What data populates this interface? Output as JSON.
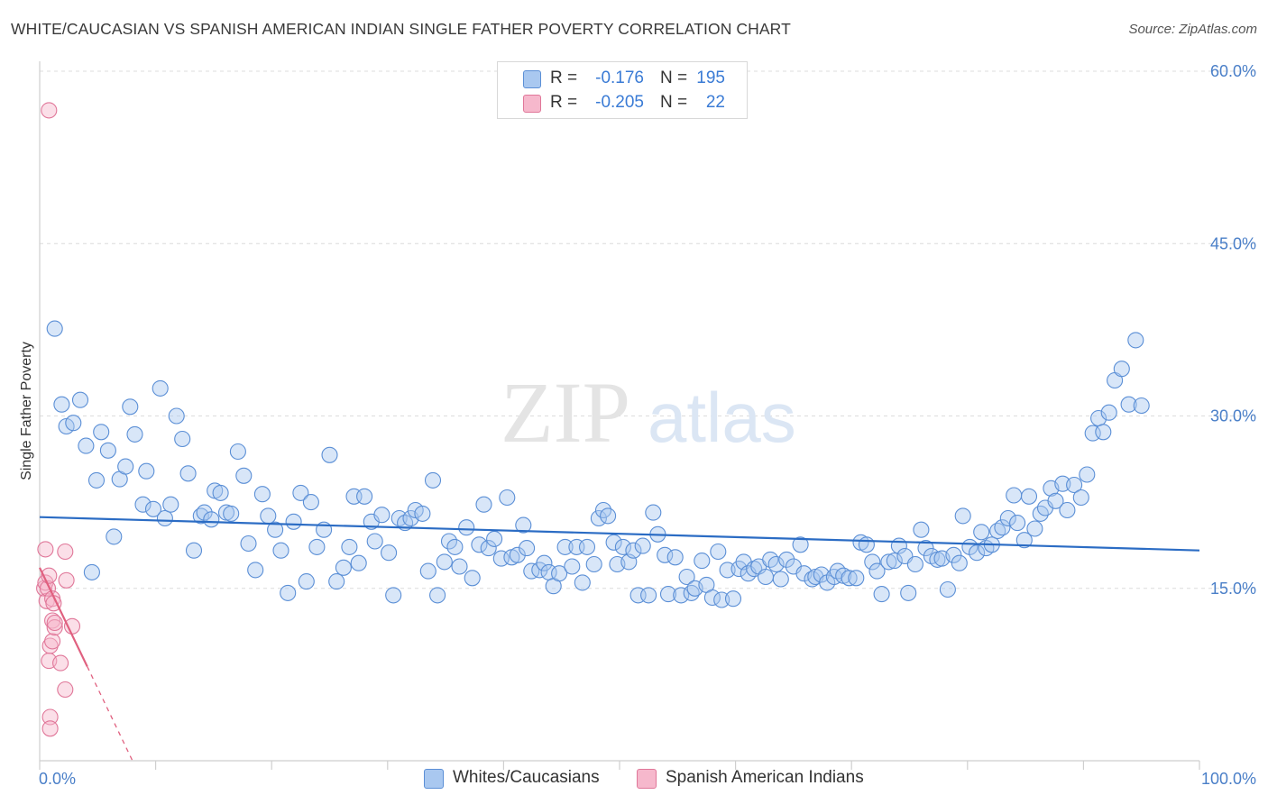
{
  "title": "WHITE/CAUCASIAN VS SPANISH AMERICAN INDIAN SINGLE FATHER POVERTY CORRELATION CHART",
  "source": "Source: ZipAtlas.com",
  "watermark": {
    "zip": "ZIP",
    "atlas": "atlas"
  },
  "legend": {
    "rows": [
      {
        "r_label": "R =",
        "r_value": "-0.176",
        "n_label": "N =",
        "n_value": "195",
        "color": "#a9c8f0",
        "border": "#5b8fd6"
      },
      {
        "r_label": "R =",
        "r_value": "-0.205",
        "n_label": "N =",
        "n_value": "22",
        "color": "#f6b8cc",
        "border": "#e07799"
      }
    ]
  },
  "bottom_legend": [
    {
      "label": "Whites/Caucasians",
      "color": "#a9c8f0",
      "border": "#5b8fd6"
    },
    {
      "label": "Spanish American Indians",
      "color": "#f6b8cc",
      "border": "#e07799"
    }
  ],
  "chart_data": {
    "type": "scatter",
    "title": "WHITE/CAUCASIAN VS SPANISH AMERICAN INDIAN SINGLE FATHER POVERTY CORRELATION CHART",
    "xlabel": "",
    "ylabel": "Single Father Poverty",
    "xlim": [
      0,
      100
    ],
    "ylim": [
      0,
      60
    ],
    "x_tick_labels": {
      "min": "0.0%",
      "max": "100.0%"
    },
    "y_ticks": [
      15,
      30,
      45,
      60
    ],
    "y_tick_labels": [
      "15.0%",
      "30.0%",
      "45.0%",
      "60.0%"
    ],
    "grid": true,
    "series": [
      {
        "name": "Whites/Caucasians",
        "color": "#5b8fd6",
        "fill": "rgba(169,200,240,0.45)",
        "trend": {
          "x": [
            0,
            100
          ],
          "y": [
            21.2,
            18.3
          ],
          "color": "#2b6cc4"
        },
        "points": [
          [
            1.3,
            37.6
          ],
          [
            1.9,
            31.0
          ],
          [
            2.3,
            29.1
          ],
          [
            2.9,
            29.4
          ],
          [
            3.5,
            31.4
          ],
          [
            4.0,
            27.4
          ],
          [
            4.5,
            16.4
          ],
          [
            4.9,
            24.4
          ],
          [
            5.3,
            28.6
          ],
          [
            5.9,
            27.0
          ],
          [
            6.4,
            19.5
          ],
          [
            6.9,
            24.5
          ],
          [
            7.4,
            25.6
          ],
          [
            7.8,
            30.8
          ],
          [
            8.2,
            28.4
          ],
          [
            8.9,
            22.3
          ],
          [
            9.2,
            25.2
          ],
          [
            9.8,
            21.9
          ],
          [
            10.4,
            32.4
          ],
          [
            10.8,
            21.1
          ],
          [
            11.3,
            22.3
          ],
          [
            11.8,
            30.0
          ],
          [
            12.3,
            28.0
          ],
          [
            12.8,
            25.0
          ],
          [
            13.3,
            18.3
          ],
          [
            13.9,
            21.3
          ],
          [
            14.2,
            21.6
          ],
          [
            14.8,
            21.0
          ],
          [
            15.1,
            23.5
          ],
          [
            15.6,
            23.3
          ],
          [
            16.1,
            21.6
          ],
          [
            16.5,
            21.5
          ],
          [
            17.1,
            26.9
          ],
          [
            17.6,
            24.8
          ],
          [
            18.0,
            18.9
          ],
          [
            18.6,
            16.6
          ],
          [
            19.2,
            23.2
          ],
          [
            19.7,
            21.3
          ],
          [
            20.3,
            20.1
          ],
          [
            20.8,
            18.3
          ],
          [
            21.4,
            14.6
          ],
          [
            21.9,
            20.8
          ],
          [
            22.5,
            23.3
          ],
          [
            23.0,
            15.6
          ],
          [
            23.4,
            22.5
          ],
          [
            23.9,
            18.6
          ],
          [
            24.5,
            20.1
          ],
          [
            25.0,
            26.6
          ],
          [
            25.6,
            15.6
          ],
          [
            26.2,
            16.8
          ],
          [
            26.7,
            18.6
          ],
          [
            27.1,
            23.0
          ],
          [
            27.5,
            17.2
          ],
          [
            28.0,
            23.0
          ],
          [
            28.6,
            20.8
          ],
          [
            28.9,
            19.1
          ],
          [
            29.5,
            21.4
          ],
          [
            30.1,
            18.1
          ],
          [
            30.5,
            14.4
          ],
          [
            31.0,
            21.1
          ],
          [
            31.5,
            20.7
          ],
          [
            32.0,
            21.1
          ],
          [
            32.4,
            21.8
          ],
          [
            33.0,
            21.5
          ],
          [
            33.5,
            16.5
          ],
          [
            33.9,
            24.4
          ],
          [
            34.3,
            14.4
          ],
          [
            34.9,
            17.3
          ],
          [
            35.3,
            19.1
          ],
          [
            35.8,
            18.6
          ],
          [
            36.2,
            16.9
          ],
          [
            36.8,
            20.3
          ],
          [
            37.3,
            15.9
          ],
          [
            37.9,
            18.8
          ],
          [
            38.3,
            22.3
          ],
          [
            38.7,
            18.5
          ],
          [
            39.2,
            19.3
          ],
          [
            39.8,
            17.6
          ],
          [
            40.3,
            22.9
          ],
          [
            40.7,
            17.7
          ],
          [
            41.2,
            17.9
          ],
          [
            41.7,
            20.5
          ],
          [
            42.0,
            18.5
          ],
          [
            42.4,
            16.5
          ],
          [
            43.1,
            16.6
          ],
          [
            43.5,
            17.2
          ],
          [
            43.9,
            16.4
          ],
          [
            44.3,
            15.2
          ],
          [
            44.8,
            16.3
          ],
          [
            45.3,
            18.6
          ],
          [
            45.9,
            16.9
          ],
          [
            46.3,
            18.6
          ],
          [
            46.8,
            15.5
          ],
          [
            47.2,
            18.6
          ],
          [
            47.8,
            17.1
          ],
          [
            48.2,
            21.1
          ],
          [
            48.6,
            21.8
          ],
          [
            49.0,
            21.3
          ],
          [
            49.5,
            19.0
          ],
          [
            49.8,
            17.1
          ],
          [
            50.3,
            18.6
          ],
          [
            50.8,
            17.3
          ],
          [
            51.2,
            18.3
          ],
          [
            51.6,
            14.4
          ],
          [
            52.0,
            18.7
          ],
          [
            52.5,
            14.4
          ],
          [
            52.9,
            21.6
          ],
          [
            53.3,
            19.7
          ],
          [
            53.9,
            17.9
          ],
          [
            54.2,
            14.5
          ],
          [
            54.8,
            17.7
          ],
          [
            55.3,
            14.4
          ],
          [
            55.8,
            16.0
          ],
          [
            56.2,
            14.6
          ],
          [
            56.5,
            15.0
          ],
          [
            57.1,
            17.4
          ],
          [
            57.5,
            15.3
          ],
          [
            58.0,
            14.2
          ],
          [
            58.5,
            18.2
          ],
          [
            58.8,
            14.0
          ],
          [
            59.3,
            16.6
          ],
          [
            59.8,
            14.1
          ],
          [
            60.3,
            16.7
          ],
          [
            60.7,
            17.3
          ],
          [
            61.1,
            16.3
          ],
          [
            61.6,
            16.7
          ],
          [
            62.0,
            16.9
          ],
          [
            62.6,
            16.0
          ],
          [
            63.0,
            17.5
          ],
          [
            63.5,
            17.1
          ],
          [
            63.9,
            15.8
          ],
          [
            64.4,
            17.5
          ],
          [
            65.0,
            16.9
          ],
          [
            65.6,
            18.8
          ],
          [
            65.9,
            16.3
          ],
          [
            66.6,
            15.8
          ],
          [
            66.9,
            16.0
          ],
          [
            67.4,
            16.2
          ],
          [
            67.9,
            15.5
          ],
          [
            68.5,
            16.0
          ],
          [
            68.8,
            16.5
          ],
          [
            69.3,
            16.1
          ],
          [
            69.8,
            15.9
          ],
          [
            70.4,
            15.9
          ],
          [
            70.8,
            19.0
          ],
          [
            71.3,
            18.8
          ],
          [
            71.8,
            17.3
          ],
          [
            72.2,
            16.5
          ],
          [
            72.6,
            14.5
          ],
          [
            73.2,
            17.3
          ],
          [
            73.7,
            17.4
          ],
          [
            74.1,
            18.7
          ],
          [
            74.6,
            17.8
          ],
          [
            74.9,
            14.6
          ],
          [
            75.5,
            17.1
          ],
          [
            76.0,
            20.1
          ],
          [
            76.4,
            18.5
          ],
          [
            76.9,
            17.8
          ],
          [
            77.4,
            17.5
          ],
          [
            77.8,
            17.6
          ],
          [
            78.3,
            14.9
          ],
          [
            78.8,
            17.9
          ],
          [
            79.3,
            17.2
          ],
          [
            79.6,
            21.3
          ],
          [
            80.2,
            18.6
          ],
          [
            80.8,
            18.1
          ],
          [
            81.2,
            19.9
          ],
          [
            81.6,
            18.5
          ],
          [
            82.1,
            18.8
          ],
          [
            82.6,
            20.0
          ],
          [
            83.0,
            20.3
          ],
          [
            83.5,
            21.1
          ],
          [
            84.0,
            23.1
          ],
          [
            84.3,
            20.7
          ],
          [
            84.9,
            19.2
          ],
          [
            85.3,
            23.0
          ],
          [
            85.8,
            20.2
          ],
          [
            86.3,
            21.5
          ],
          [
            86.7,
            22.0
          ],
          [
            87.2,
            23.7
          ],
          [
            87.6,
            22.6
          ],
          [
            88.2,
            24.1
          ],
          [
            88.6,
            21.8
          ],
          [
            89.2,
            24.0
          ],
          [
            89.8,
            22.9
          ],
          [
            90.3,
            24.9
          ],
          [
            90.8,
            28.5
          ],
          [
            91.3,
            29.8
          ],
          [
            91.7,
            28.6
          ],
          [
            92.2,
            30.3
          ],
          [
            92.7,
            33.1
          ],
          [
            93.3,
            34.1
          ],
          [
            93.9,
            31.0
          ],
          [
            94.5,
            36.6
          ],
          [
            95.0,
            30.9
          ]
        ]
      },
      {
        "name": "Spanish American Indians",
        "color": "#e07799",
        "fill": "rgba(246,184,204,0.45)",
        "trend": {
          "x": [
            0,
            4.1
          ],
          "y": [
            16.8,
            8.2
          ],
          "dash_to": [
            8.0,
            0
          ],
          "color": "#e0607f"
        },
        "points": [
          [
            0.4,
            15.0
          ],
          [
            0.5,
            15.5
          ],
          [
            0.5,
            18.4
          ],
          [
            0.6,
            13.9
          ],
          [
            0.7,
            15.0
          ],
          [
            0.8,
            16.1
          ],
          [
            0.8,
            56.6
          ],
          [
            0.8,
            8.7
          ],
          [
            0.9,
            3.8
          ],
          [
            0.9,
            10.0
          ],
          [
            0.9,
            2.8
          ],
          [
            1.1,
            10.4
          ],
          [
            1.1,
            12.2
          ],
          [
            1.1,
            14.1
          ],
          [
            1.2,
            13.7
          ],
          [
            1.3,
            11.6
          ],
          [
            1.3,
            12.0
          ],
          [
            1.8,
            8.5
          ],
          [
            2.2,
            18.2
          ],
          [
            2.2,
            6.2
          ],
          [
            2.3,
            15.7
          ],
          [
            2.8,
            11.7
          ]
        ]
      }
    ]
  }
}
